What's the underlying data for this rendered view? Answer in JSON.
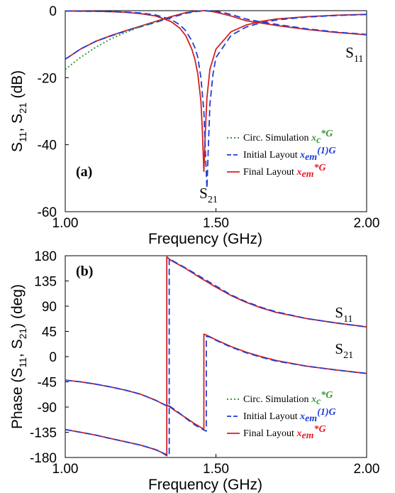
{
  "chart_data": [
    {
      "panel": "(a)",
      "type": "line",
      "xlabel": "Frequency (GHz)",
      "ylabel": "S11, S21 (dB)",
      "ylabel_parts": [
        "S",
        "11",
        ", S",
        "21",
        " (dB)"
      ],
      "xlim": [
        1.0,
        2.0
      ],
      "ylim": [
        -60,
        0
      ],
      "xticks": [
        1.0,
        1.5,
        2.0
      ],
      "xtick_labels": [
        "1.00",
        "1.50",
        "2.00"
      ],
      "yticks": [
        0,
        -20,
        -40,
        -60
      ],
      "ytick_labels": [
        "0",
        "-20",
        "-40",
        "-60"
      ],
      "grid": false,
      "legend": {
        "placement": "lower-right",
        "entries": [
          {
            "label": "Circ. Simulation ",
            "math": "x",
            "sub": "c",
            "sup": "*G",
            "style": "dotted",
            "color": "#3a9a3a",
            "label_color": "#3a9a3a"
          },
          {
            "label": "Initial Layout ",
            "math": "x",
            "sub": "em",
            "sup": "(1)G",
            "style": "dashed",
            "color": "#1f3fd6",
            "label_color": "#1f3fd6"
          },
          {
            "label": "Final Layout ",
            "math": "x",
            "sub": "em",
            "sup": "*G",
            "style": "solid",
            "color": "#d42020",
            "label_color": "#e8202a"
          }
        ]
      },
      "annotations": [
        {
          "text": "S",
          "sub": "11",
          "at": [
            1.93,
            -14
          ]
        },
        {
          "text": "S",
          "sub": "21",
          "at": [
            1.445,
            -56
          ]
        }
      ],
      "series": [
        {
          "name": "S11",
          "style": "solid",
          "color": "#d42020",
          "x": [
            1.0,
            1.05,
            1.1,
            1.15,
            1.2,
            1.25,
            1.3,
            1.35,
            1.38,
            1.4,
            1.42,
            1.43,
            1.44,
            1.45,
            1.455,
            1.46,
            1.465,
            1.47,
            1.48,
            1.5,
            1.55,
            1.6,
            1.65,
            1.7,
            1.8,
            1.9,
            2.0
          ],
          "y": [
            -0.1,
            -0.15,
            -0.2,
            -0.3,
            -0.5,
            -0.9,
            -1.6,
            -3.2,
            -5.2,
            -7.5,
            -11.5,
            -14.5,
            -19,
            -27,
            -36,
            -48,
            -36,
            -26,
            -17.5,
            -11.5,
            -6.3,
            -4.3,
            -3.2,
            -2.5,
            -1.8,
            -1.35,
            -1.1
          ]
        },
        {
          "name": "S11",
          "style": "dashed",
          "color": "#1f3fd6",
          "x": [
            1.0,
            1.05,
            1.1,
            1.15,
            1.2,
            1.25,
            1.3,
            1.35,
            1.38,
            1.4,
            1.42,
            1.43,
            1.44,
            1.45,
            1.46,
            1.465,
            1.47,
            1.475,
            1.48,
            1.49,
            1.5,
            1.55,
            1.6,
            1.65,
            1.7,
            1.8,
            1.9,
            2.0
          ],
          "y": [
            -0.1,
            -0.15,
            -0.2,
            -0.3,
            -0.4,
            -0.7,
            -1.3,
            -2.6,
            -4.2,
            -6,
            -9,
            -11,
            -14,
            -20,
            -30,
            -42,
            -53,
            -40,
            -28,
            -19,
            -14,
            -7.4,
            -4.9,
            -3.6,
            -2.8,
            -1.9,
            -1.45,
            -1.15
          ]
        },
        {
          "name": "S21",
          "style": "solid",
          "color": "#d42020",
          "x": [
            1.0,
            1.05,
            1.1,
            1.15,
            1.2,
            1.25,
            1.3,
            1.35,
            1.4,
            1.43,
            1.46,
            1.49,
            1.52,
            1.55,
            1.6,
            1.65,
            1.7,
            1.8,
            1.9,
            2.0
          ],
          "y": [
            -14.5,
            -11.5,
            -9.2,
            -7.5,
            -6,
            -4.6,
            -3.2,
            -1.8,
            -0.6,
            -0.2,
            0,
            -0.3,
            -0.9,
            -1.6,
            -3,
            -3.7,
            -4.4,
            -5.6,
            -6.5,
            -7.2
          ]
        },
        {
          "name": "S21",
          "style": "dashed",
          "color": "#1f3fd6",
          "x": [
            1.0,
            1.05,
            1.1,
            1.15,
            1.2,
            1.25,
            1.3,
            1.35,
            1.4,
            1.43,
            1.465,
            1.5,
            1.53,
            1.56,
            1.6,
            1.65,
            1.7,
            1.8,
            1.9,
            2.0
          ],
          "y": [
            -14.5,
            -11.5,
            -9.2,
            -7.6,
            -6.1,
            -4.8,
            -3.5,
            -2.1,
            -0.8,
            -0.3,
            0,
            -0.2,
            -0.7,
            -1.4,
            -2.5,
            -3.4,
            -4.1,
            -5.4,
            -6.4,
            -7.1
          ]
        },
        {
          "name": "S21",
          "style": "dotted",
          "color": "#3a9a3a",
          "x": [
            1.0,
            1.05,
            1.1,
            1.15,
            1.2,
            1.25,
            1.3,
            1.33
          ],
          "y": [
            -17.5,
            -14,
            -11,
            -8.5,
            -6.5,
            -4.8,
            -3.3,
            -2.5
          ]
        }
      ]
    },
    {
      "panel": "(b)",
      "type": "line",
      "xlabel": "Frequency (GHz)",
      "ylabel": "Phase (S11, S21) (deg)",
      "ylabel_parts": [
        "Phase (S",
        "11",
        ", S",
        "21",
        ")  (deg)"
      ],
      "xlim": [
        1.0,
        2.0
      ],
      "ylim": [
        -180,
        180
      ],
      "xticks": [
        1.0,
        1.5,
        2.0
      ],
      "xtick_labels": [
        "1.00",
        "1.50",
        "2.00"
      ],
      "yticks": [
        180,
        135,
        90,
        45,
        0,
        -45,
        -90,
        -135,
        -180
      ],
      "ytick_labels": [
        "180",
        "135",
        "90",
        "45",
        "0",
        "-45",
        "-90",
        "-135",
        "-180"
      ],
      "grid": false,
      "legend": {
        "placement": "lower-right",
        "entries": [
          {
            "label": "Circ. Simulation ",
            "math": "x",
            "sub": "c",
            "sup": "*G",
            "style": "dotted",
            "color": "#3a9a3a",
            "label_color": "#3a9a3a"
          },
          {
            "label": "Initial Layout ",
            "math": "x",
            "sub": "em",
            "sup": "(1)G",
            "style": "dashed",
            "color": "#1f3fd6",
            "label_color": "#1f3fd6"
          },
          {
            "label": "Final Layout ",
            "math": "x",
            "sub": "em",
            "sup": "*G",
            "style": "solid",
            "color": "#d42020",
            "label_color": "#e8202a"
          }
        ]
      },
      "annotations": [
        {
          "text": "S",
          "sub": "11",
          "at": [
            1.895,
            70
          ]
        },
        {
          "text": "S",
          "sub": "21",
          "at": [
            1.895,
            5
          ]
        }
      ],
      "series": [
        {
          "name": "S11",
          "style": "solid",
          "color": "#d42020",
          "x": [
            1.0,
            1.05,
            1.1,
            1.15,
            1.2,
            1.25,
            1.3,
            1.32,
            1.337,
            1.337,
            1.35,
            1.4,
            1.45,
            1.5,
            1.55,
            1.6,
            1.65,
            1.7,
            1.8,
            1.9,
            2.0
          ],
          "y": [
            -130,
            -135,
            -140,
            -146,
            -152,
            -158,
            -166,
            -171,
            -177,
            178,
            172,
            157,
            140,
            124,
            109,
            97,
            87,
            79,
            68,
            60,
            53
          ]
        },
        {
          "name": "S11",
          "style": "dashed",
          "color": "#1f3fd6",
          "x": [
            1.0,
            1.05,
            1.1,
            1.15,
            1.2,
            1.25,
            1.3,
            1.32,
            1.345,
            1.345,
            1.36,
            1.4,
            1.45,
            1.5,
            1.55,
            1.6,
            1.65,
            1.7,
            1.8,
            1.9,
            2.0
          ],
          "y": [
            -130,
            -135,
            -140,
            -146,
            -152,
            -158,
            -166,
            -171,
            -177,
            175,
            170,
            158,
            142,
            126,
            110,
            98,
            88,
            80,
            68,
            60,
            53
          ]
        },
        {
          "name": "S21",
          "style": "solid",
          "color": "#d42020",
          "x": [
            1.0,
            1.05,
            1.1,
            1.15,
            1.2,
            1.25,
            1.3,
            1.337,
            1.337,
            1.36,
            1.4,
            1.43,
            1.455,
            1.46,
            1.46,
            1.47,
            1.5,
            1.55,
            1.6,
            1.65,
            1.7,
            1.8,
            1.9,
            2.0
          ],
          "y": [
            -42,
            -45,
            -49,
            -54,
            -60,
            -67,
            -78,
            -88,
            -86,
            -95,
            -109,
            -120,
            -128,
            -130,
            40,
            38,
            30,
            18,
            8,
            0,
            -7,
            -17,
            -24,
            -30
          ]
        },
        {
          "name": "S21",
          "style": "dashed",
          "color": "#1f3fd6",
          "x": [
            1.0,
            1.05,
            1.1,
            1.15,
            1.2,
            1.25,
            1.3,
            1.345,
            1.345,
            1.37,
            1.4,
            1.43,
            1.46,
            1.468,
            1.468,
            1.48,
            1.5,
            1.55,
            1.6,
            1.65,
            1.7,
            1.8,
            1.9,
            2.0
          ],
          "y": [
            -42,
            -45,
            -49,
            -54,
            -60,
            -67,
            -78,
            -90,
            -88,
            -97,
            -110,
            -122,
            -131,
            -133,
            36,
            35,
            29,
            17,
            7,
            -1,
            -8,
            -17,
            -24,
            -30
          ]
        }
      ]
    }
  ]
}
